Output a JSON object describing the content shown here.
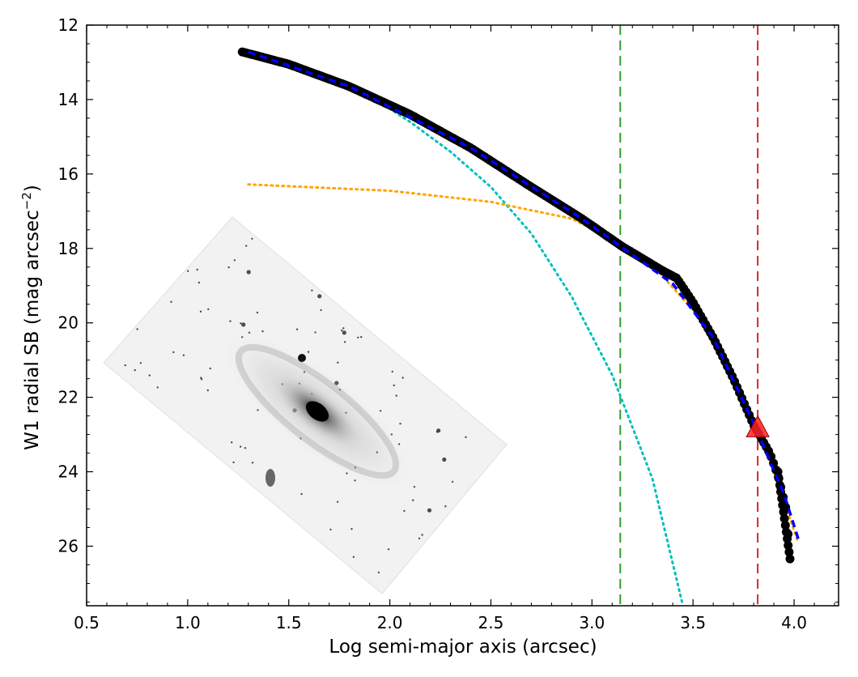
{
  "chart_data": {
    "type": "scatter",
    "title": "",
    "xlabel": "Log semi-major axis (arcsec)",
    "ylabel_main": "W1 radial SB (mag arcsec",
    "ylabel_sup": "−2",
    "ylabel_close": ")",
    "xlim": [
      0.5,
      4.22
    ],
    "ylim": [
      27.6,
      12
    ],
    "y_inverted": true,
    "x_ticks": [
      0.5,
      1.0,
      1.5,
      2.0,
      2.5,
      3.0,
      3.5,
      4.0
    ],
    "x_tick_labels": [
      "0.5",
      "1.0",
      "1.5",
      "2.0",
      "2.5",
      "3.0",
      "3.5",
      "4.0"
    ],
    "y_ticks": [
      12,
      14,
      16,
      18,
      20,
      22,
      24,
      26
    ],
    "y_tick_labels": [
      "12",
      "14",
      "16",
      "18",
      "20",
      "22",
      "24",
      "26"
    ],
    "grid": false,
    "colors": {
      "data_points": "#000000",
      "total_fit": "#0000ff",
      "disk_fit": "#ffa500",
      "bulge_fit": "#00bfbf",
      "green_line": "#2ca02c",
      "red_line": "#d62728",
      "triangle_fill": "#ff2020"
    },
    "profile_knots": [
      [
        1.27,
        12.72
      ],
      [
        1.5,
        13.05
      ],
      [
        1.8,
        13.65
      ],
      [
        2.1,
        14.4
      ],
      [
        2.4,
        15.3
      ],
      [
        2.7,
        16.35
      ],
      [
        2.95,
        17.2
      ],
      [
        3.15,
        17.95
      ],
      [
        3.35,
        18.6
      ],
      [
        3.42,
        18.8
      ],
      [
        3.5,
        19.45
      ],
      [
        3.6,
        20.4
      ],
      [
        3.7,
        21.5
      ],
      [
        3.8,
        22.75
      ],
      [
        3.88,
        23.5
      ],
      [
        3.92,
        24.1
      ],
      [
        3.96,
        25.0
      ],
      [
        3.98,
        26.35
      ]
    ],
    "disk_fit_knots": [
      [
        1.3,
        16.28
      ],
      [
        2.0,
        16.45
      ],
      [
        2.5,
        16.75
      ],
      [
        2.9,
        17.2
      ],
      [
        3.1,
        17.75
      ],
      [
        3.3,
        18.45
      ],
      [
        3.5,
        19.65
      ],
      [
        3.7,
        21.45
      ],
      [
        3.9,
        24.0
      ],
      [
        4.02,
        25.9
      ]
    ],
    "bulge_fit_knots": [
      [
        1.27,
        12.72
      ],
      [
        1.6,
        13.2
      ],
      [
        1.9,
        13.9
      ],
      [
        2.1,
        14.6
      ],
      [
        2.3,
        15.4
      ],
      [
        2.5,
        16.35
      ],
      [
        2.7,
        17.6
      ],
      [
        2.9,
        19.3
      ],
      [
        3.1,
        21.4
      ],
      [
        3.3,
        24.2
      ],
      [
        3.45,
        27.6
      ]
    ],
    "total_fit_knots": [
      [
        1.3,
        12.72
      ],
      [
        1.8,
        13.65
      ],
      [
        2.4,
        15.3
      ],
      [
        2.95,
        17.2
      ],
      [
        3.4,
        18.95
      ],
      [
        3.6,
        20.4
      ],
      [
        3.8,
        22.7
      ],
      [
        3.95,
        24.6
      ],
      [
        4.02,
        25.8
      ]
    ],
    "vertical_lines": [
      {
        "x": 3.14,
        "color_key": "green_line"
      },
      {
        "x": 3.82,
        "color_key": "red_line"
      }
    ],
    "marker": {
      "x": 3.82,
      "y": 22.8,
      "shape": "triangle"
    }
  },
  "inset": {
    "description_icon": "galaxy-image"
  }
}
